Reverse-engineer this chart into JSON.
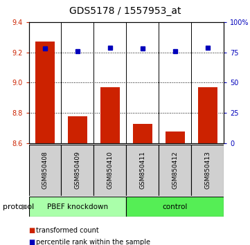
{
  "title": "GDS5178 / 1557953_at",
  "samples": [
    "GSM850408",
    "GSM850409",
    "GSM850410",
    "GSM850411",
    "GSM850412",
    "GSM850413"
  ],
  "bar_values": [
    9.27,
    8.78,
    8.97,
    8.73,
    8.68,
    8.97
  ],
  "percentile_values": [
    78,
    76,
    79,
    78,
    76,
    79
  ],
  "bar_color": "#cc2200",
  "dot_color": "#0000bb",
  "ylim_left": [
    8.6,
    9.4
  ],
  "ylim_right": [
    0,
    100
  ],
  "yticks_left": [
    8.6,
    8.8,
    9.0,
    9.2,
    9.4
  ],
  "yticks_right": [
    0,
    25,
    50,
    75,
    100
  ],
  "group1_label": "PBEF knockdown",
  "group1_color": "#aaffaa",
  "group2_label": "control",
  "group2_color": "#55ee55",
  "protocol_label": "protocol",
  "legend_bar_label": "transformed count",
  "legend_dot_label": "percentile rank within the sample",
  "bar_width": 0.6,
  "baseline": 8.6,
  "bg_color": "#ffffff",
  "sample_box_color": "#d0d0d0",
  "title_fontsize": 10,
  "axis_fontsize": 7,
  "sample_fontsize": 6.5,
  "legend_fontsize": 7,
  "protocol_fontsize": 8
}
